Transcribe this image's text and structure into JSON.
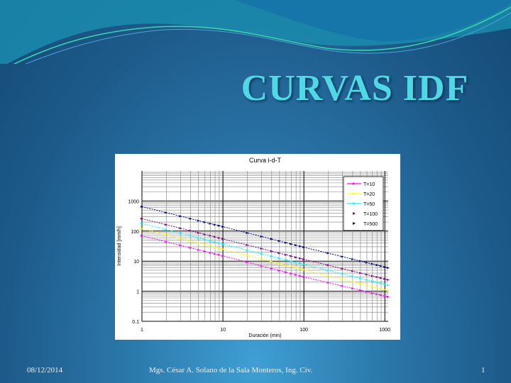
{
  "slide": {
    "title": "CURVAS IDF",
    "footer": {
      "date": "08/12/2014",
      "author": "Mgs. César A. Solano de la Sala Monteros, Ing. Civ.",
      "page": "1"
    }
  },
  "chart_data": {
    "type": "line",
    "title": "Curva i-d-T",
    "xlabel": "Duración (min)",
    "ylabel": "Intensidad [mm/h]",
    "xscale": "log",
    "yscale": "log",
    "xlim": [
      1,
      1100
    ],
    "ylim": [
      0.1,
      10000
    ],
    "x_ticks": [
      "1",
      "10",
      "100",
      "1000"
    ],
    "y_ticks": [
      "0.1",
      "1",
      "10",
      "100",
      "1000"
    ],
    "grid": true,
    "legend_position": "upper-right",
    "x": [
      1,
      10,
      100,
      1100
    ],
    "series": [
      {
        "name": "T=10",
        "color": "#ff00ff",
        "values": [
          70,
          15,
          3.0,
          0.65
        ]
      },
      {
        "name": "T=20",
        "color": "#ffff00",
        "values": [
          120,
          25,
          5.2,
          1.05
        ]
      },
      {
        "name": "T=50",
        "color": "#00ffff",
        "values": [
          180,
          37,
          7.8,
          1.6
        ]
      },
      {
        "name": "T=100",
        "color": "#800080",
        "values": [
          260,
          55,
          11.5,
          2.4
        ]
      },
      {
        "name": "T=500",
        "color": "#000080",
        "values": [
          650,
          140,
          29,
          6.0
        ]
      }
    ]
  }
}
